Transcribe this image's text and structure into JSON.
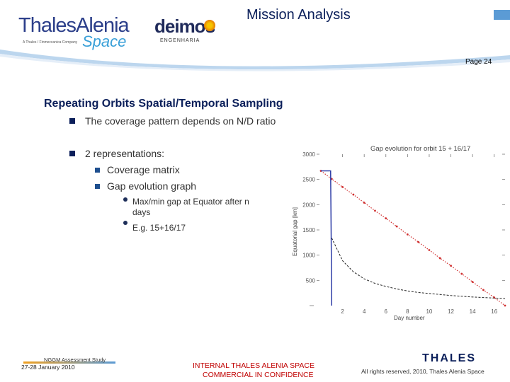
{
  "header": {
    "company_logo_word": "ThalesAlenia",
    "company_logo_script": "Space",
    "company_logo_tagline": "A Thales / Finmeccanica Company",
    "partner_logo_word": "deimos",
    "partner_logo_sub": "ENGENHARIA",
    "title": "Mission Analysis",
    "page_label": "Page 24"
  },
  "content": {
    "heading": "Repeating Orbits Spatial/Temporal Sampling",
    "bullets": [
      "The coverage pattern depends on N/D ratio",
      "2 representations:"
    ],
    "sub_bullets": [
      "Coverage matrix",
      "Gap evolution graph"
    ],
    "sub_sub_bullets": [
      "Max/min gap at Equator after n days",
      "E.g. 15+16/17"
    ]
  },
  "footer": {
    "event": "NGGM Assessment Study",
    "date": "27-28 January 2010",
    "confidentiality_line1": "INTERNAL THALES ALENIA SPACE",
    "confidentiality_line2": "COMMERCIAL IN CONFIDENCE",
    "brand": "THALES",
    "rights": "All rights reserved, 2010, Thales Alenia Space"
  },
  "chart_data": {
    "type": "line",
    "title": "Gap evolution for orbit 15 + 16/17",
    "xlabel": "Day number",
    "ylabel": "Equatorial gap [km]",
    "xlim": [
      0,
      17
    ],
    "ylim": [
      0,
      3000
    ],
    "xticks": [
      2,
      4,
      6,
      8,
      10,
      12,
      14,
      16
    ],
    "yticks": [
      500,
      1000,
      1500,
      2000,
      2500,
      3000
    ],
    "ytick_labels": [
      "500",
      "1000",
      "1500",
      "2000",
      "2500",
      "3000"
    ],
    "series": [
      {
        "name": "",
        "style": "red-dotted",
        "color": "#d03030",
        "x": [
          0,
          1,
          2,
          3,
          4,
          5,
          6,
          7,
          8,
          9,
          10,
          11,
          12,
          13,
          14,
          15,
          16,
          17
        ],
        "y": [
          2670,
          2510,
          2350,
          2200,
          2040,
          1880,
          1730,
          1570,
          1410,
          1260,
          1100,
          940,
          790,
          630,
          470,
          310,
          160,
          0
        ]
      },
      {
        "name": "",
        "style": "black-dashed",
        "color": "#222222",
        "x": [
          1,
          2,
          3,
          4,
          5,
          6,
          7,
          8,
          9,
          10,
          11,
          12,
          13,
          14,
          15,
          16,
          17
        ],
        "y": [
          1340,
          890,
          670,
          530,
          440,
          380,
          330,
          290,
          260,
          240,
          220,
          200,
          185,
          170,
          160,
          150,
          140
        ]
      },
      {
        "name": "",
        "style": "blue-solid",
        "color": "#2030a0",
        "x": [
          0,
          0.5,
          0.9,
          1
        ],
        "y": [
          2670,
          2670,
          2670,
          0
        ]
      }
    ]
  }
}
